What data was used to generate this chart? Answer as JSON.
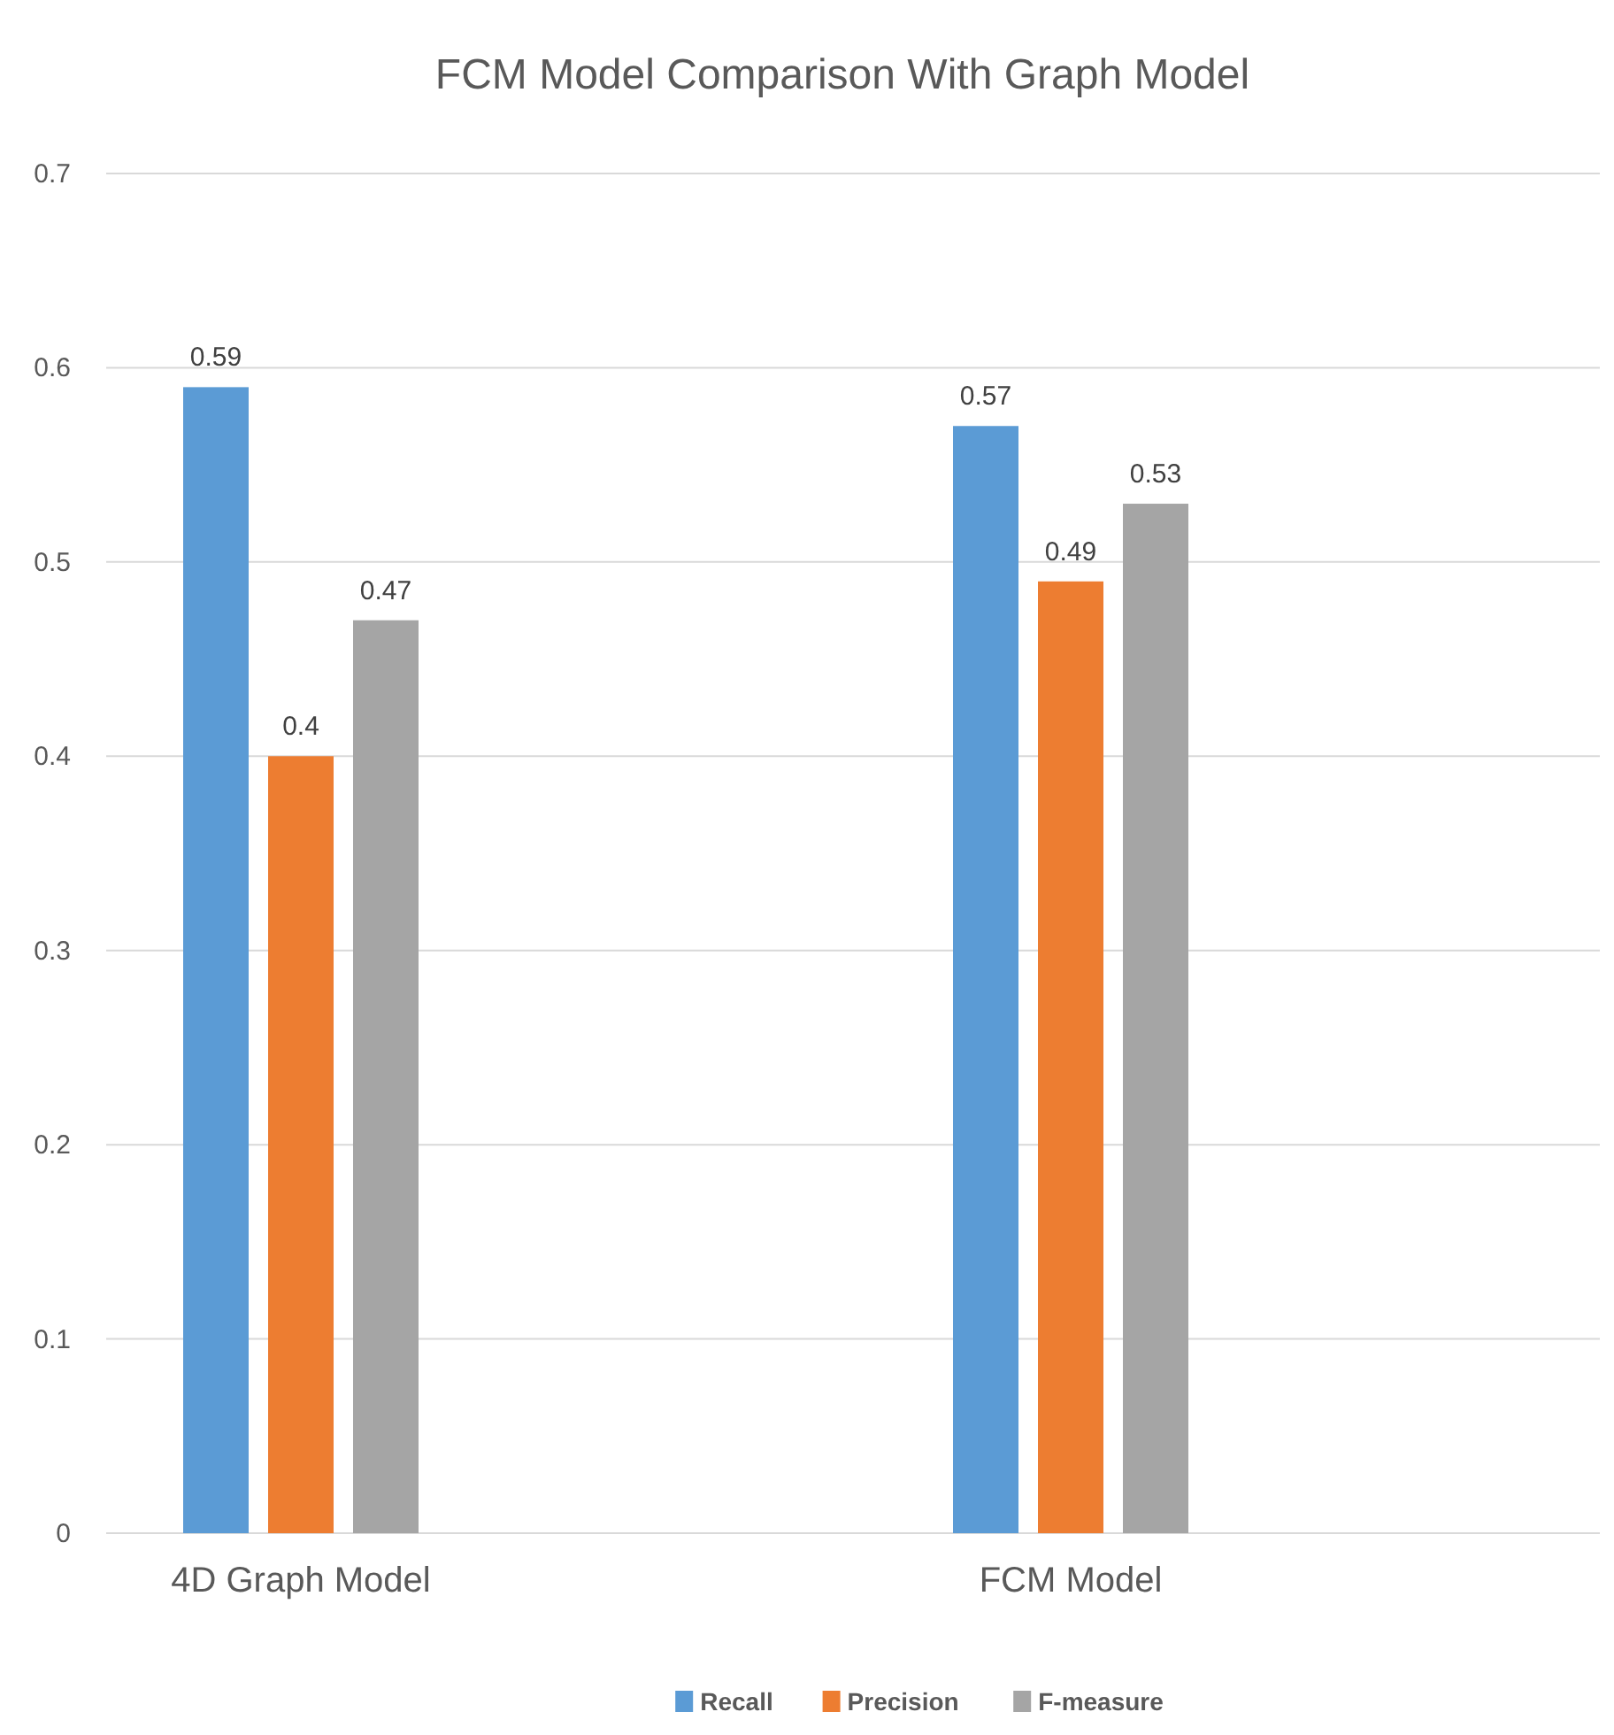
{
  "chart_data": {
    "type": "bar",
    "title": "FCM Model Comparison With Graph Model",
    "categories": [
      "4D Graph Model",
      "FCM Model"
    ],
    "series": [
      {
        "name": "Recall",
        "color": "#5b9bd5",
        "values": [
          0.59,
          0.57
        ]
      },
      {
        "name": "Precision",
        "color": "#ed7d31",
        "values": [
          0.4,
          0.49
        ]
      },
      {
        "name": "F-measure",
        "color": "#a5a5a5",
        "values": [
          0.47,
          0.53
        ]
      }
    ],
    "ylim": [
      0,
      0.7
    ],
    "yticks": [
      0,
      0.1,
      0.2,
      0.3,
      0.4,
      0.5,
      0.6,
      0.7
    ],
    "grid": "y",
    "legend": "bottom",
    "data_labels": true
  }
}
